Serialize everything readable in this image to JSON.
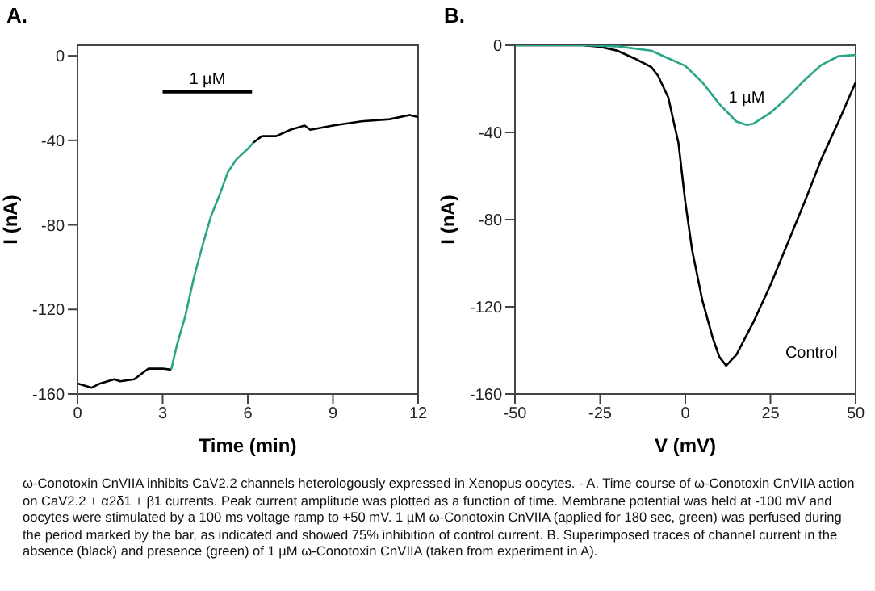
{
  "chart_data": [
    {
      "type": "line",
      "title": "A.",
      "xlabel": "Time (min)",
      "ylabel": "I (nA)",
      "xlim": [
        0,
        12
      ],
      "xticks": [
        0,
        3,
        6,
        9,
        12
      ],
      "ylim": [
        -160,
        5
      ],
      "yticks": [
        -160,
        -120,
        -80,
        -40,
        0
      ],
      "marker": "none",
      "series": [
        {
          "color": "#000000",
          "x": [
            0,
            0.5,
            0.8,
            1.3,
            1.5,
            2,
            2.5,
            3,
            3.3
          ],
          "values": [
            -155,
            -157,
            -155,
            -153,
            -154,
            -153,
            -148,
            -148,
            -148.5
          ]
        },
        {
          "color": "#2aa58a",
          "x": [
            3.3,
            3.5,
            3.8,
            4.1,
            4.4,
            4.7,
            5,
            5.3,
            5.6,
            6,
            6.2
          ],
          "values": [
            -148.5,
            -137,
            -123,
            -105,
            -90,
            -76,
            -66,
            -55,
            -49,
            -44,
            -41
          ]
        },
        {
          "color": "#000000",
          "x": [
            6.2,
            6.5,
            7,
            7.5,
            8,
            8.2,
            9,
            10,
            11,
            11.7,
            12
          ],
          "values": [
            -41,
            -38,
            -38,
            -35,
            -33,
            -35,
            -33,
            -31,
            -30,
            -28,
            -29
          ]
        },
        {
          "color": "#000000",
          "x": [
            3,
            6.15
          ],
          "values": [
            -17,
            -17
          ]
        }
      ],
      "annotations": [
        {
          "text": "1 µM",
          "x": 4.575,
          "y": -17
        },
        "ω-Conotoxin CnVIIA inhibits CaV2.2 channels heterologously expressed in Xenopus oocytes. - A. Time course of ω-Conotoxin CnVIIA action on CaV2.2 + α2δ1 + β1 currents. Peak current amplitude was plotted as a function of time. Membrane potential was held at -100 mV and oocytes were stimulated by a 100 ms voltage ramp to +50 mV. 1 µM ω-Conotoxin CnVIIA (applied for 180 sec, green) was perfused during the period marked by the bar, as indicated and showed 75% inhibition of control current. B. Superimposed traces of channel current in the absence (black) and presence (green) of 1 µM ω-Conotoxin CnVIIA (taken from experiment in A)."
      ]
    },
    {
      "type": "line",
      "title": "B.",
      "xlabel": "V (mV)",
      "ylabel": "I (nA)",
      "xlim": [
        -50,
        50
      ],
      "xticks": [
        -50,
        -25,
        0,
        25,
        50
      ],
      "ylim": [
        -160,
        0
      ],
      "yticks": [
        -160,
        -120,
        -80,
        -40,
        0
      ],
      "series": [
        {
          "name": "Control",
          "color": "#000000",
          "x": [
            -50,
            -40,
            -30,
            -25,
            -20,
            -15,
            -10,
            -8,
            -5,
            -2,
            0,
            2,
            5,
            8,
            10,
            12,
            15,
            20,
            25,
            30,
            35,
            40,
            45,
            50
          ],
          "values": [
            0,
            0,
            0,
            -0.7,
            -2.5,
            -6,
            -10,
            -14,
            -24,
            -45,
            -72,
            -94,
            -117,
            -134,
            -143,
            -147,
            -142,
            -127,
            -110,
            -91,
            -72,
            -52,
            -35,
            -17
          ]
        },
        {
          "name": "1 µM",
          "color": "#2aa58a",
          "x": [
            -50,
            -30,
            -20,
            -10,
            -5,
            0,
            5,
            10,
            15,
            18,
            20,
            25,
            30,
            35,
            40,
            45,
            50
          ],
          "values": [
            0,
            0,
            -0.5,
            -2.5,
            -6,
            -9.5,
            -17,
            -27,
            -35,
            -36.6,
            -36,
            -31,
            -24,
            -16,
            -9,
            -5,
            -4.5
          ]
        }
      ],
      "marker": "none"
    }
  ]
}
